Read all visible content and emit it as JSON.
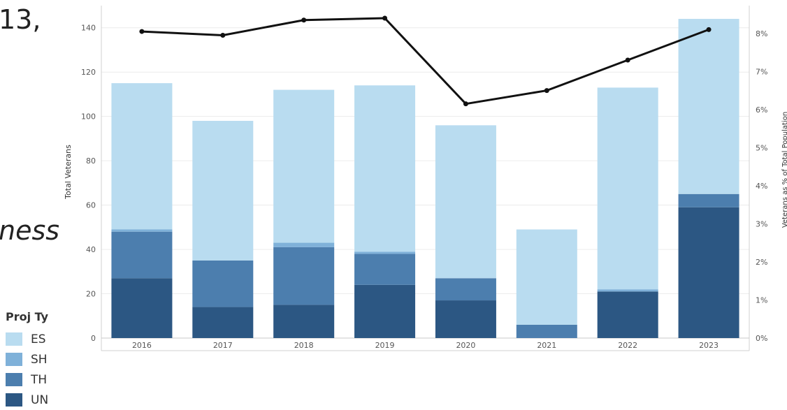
{
  "fragments": {
    "top_text": "13,",
    "italic_text": "ness"
  },
  "legend": {
    "title": "Proj Ty",
    "items": [
      {
        "label": "ES",
        "color": "#b9dcf0"
      },
      {
        "label": "SH",
        "color": "#7fb1d9"
      },
      {
        "label": "TH",
        "color": "#4c7eae"
      },
      {
        "label": "UN",
        "color": "#2c5783"
      }
    ]
  },
  "chart_data": {
    "type": "bar",
    "stacked": true,
    "categories": [
      "2016",
      "2017",
      "2018",
      "2019",
      "2020",
      "2021",
      "2022",
      "2023"
    ],
    "series": [
      {
        "name": "UN",
        "color": "#2c5783",
        "values": [
          27,
          14,
          15,
          24,
          17,
          0,
          21,
          59
        ]
      },
      {
        "name": "TH",
        "color": "#4c7eae",
        "values": [
          21,
          21,
          26,
          14,
          10,
          6,
          0,
          6
        ]
      },
      {
        "name": "SH",
        "color": "#7fb1d9",
        "values": [
          1,
          0,
          2,
          1,
          0,
          0,
          1,
          0
        ]
      },
      {
        "name": "ES",
        "color": "#b9dcf0",
        "values": [
          66,
          63,
          69,
          75,
          69,
          43,
          91,
          79
        ]
      }
    ],
    "line": {
      "color": "#111111",
      "axis": "right",
      "values": [
        8.05,
        7.95,
        8.35,
        8.4,
        6.15,
        6.5,
        7.3,
        8.1
      ]
    },
    "ylabel": "Total Veterans",
    "y2label": "Veterans as % of Total Population",
    "ylim": [
      0,
      150
    ],
    "y2lim": [
      0,
      8.73
    ],
    "yticks": [
      0,
      20,
      40,
      60,
      80,
      100,
      120,
      140
    ],
    "y2ticks": [
      0,
      1,
      2,
      3,
      4,
      5,
      6,
      7,
      8
    ],
    "y2tick_labels": [
      "0%",
      "1%",
      "2%",
      "3%",
      "4%",
      "5%",
      "6%",
      "7%",
      "8%"
    ],
    "grid": true
  }
}
